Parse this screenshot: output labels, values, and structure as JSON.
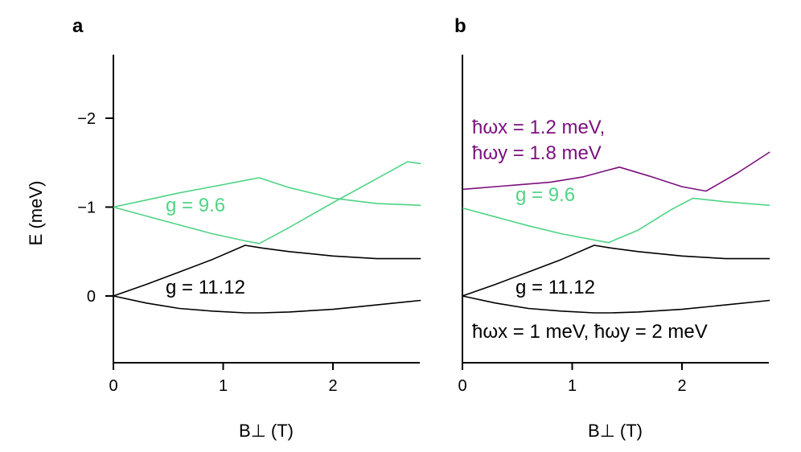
{
  "colors": {
    "black": "#000000",
    "green": "#4fd484",
    "purple": "#7b0f7d"
  },
  "ylabel": "E (meV)",
  "chart_data": [
    {
      "panel": "a",
      "type": "line",
      "xlabel": "B⊥ (T)",
      "xlim": [
        0,
        2.8
      ],
      "ylim": [
        0.75,
        -2.7
      ],
      "xticks": [
        "0",
        "1",
        "2"
      ],
      "yticks": [
        "−2",
        "−1",
        "0"
      ],
      "series": [
        {
          "name": "g=11.12 lower",
          "color": "black",
          "x": [
            0,
            0.3,
            0.6,
            0.9,
            1.2,
            1.35,
            1.6,
            2.0,
            2.4,
            2.8
          ],
          "y": [
            0,
            0.08,
            0.14,
            0.17,
            0.19,
            0.19,
            0.18,
            0.15,
            0.1,
            0.05
          ]
        },
        {
          "name": "g=11.12 upper",
          "color": "black",
          "x": [
            0,
            0.3,
            0.6,
            0.9,
            1.2,
            1.35,
            1.6,
            2.0,
            2.4,
            2.8
          ],
          "y": [
            0,
            -0.13,
            -0.27,
            -0.41,
            -0.57,
            -0.54,
            -0.5,
            -0.45,
            -0.42,
            -0.42
          ]
        },
        {
          "name": "g=9.6 lower",
          "color": "green",
          "x": [
            0,
            0.3,
            0.6,
            0.9,
            1.2,
            1.33,
            1.6,
            2.0,
            2.4,
            2.68,
            2.8
          ],
          "y": [
            -1,
            -0.9,
            -0.8,
            -0.7,
            -0.62,
            -0.59,
            -0.77,
            -1.05,
            -1.32,
            -1.51,
            -1.49
          ]
        },
        {
          "name": "g=9.6 upper",
          "color": "green",
          "x": [
            0,
            0.3,
            0.6,
            0.9,
            1.2,
            1.33,
            1.6,
            2.0,
            2.4,
            2.8
          ],
          "y": [
            -1,
            -1.08,
            -1.16,
            -1.23,
            -1.3,
            -1.33,
            -1.22,
            -1.1,
            -1.04,
            -1.02
          ]
        }
      ],
      "annotations": [
        {
          "text": "g = 9.6",
          "color": "green"
        },
        {
          "text": "g = 11.12",
          "color": "black"
        }
      ]
    },
    {
      "panel": "b",
      "type": "line",
      "xlabel": "B⊥ (T)",
      "xlim": [
        0,
        2.8
      ],
      "ylim": [
        0.75,
        -2.7
      ],
      "xticks": [
        "0",
        "1",
        "2"
      ],
      "yticks": [],
      "series": [
        {
          "name": "g=11.12 lower",
          "color": "black",
          "x": [
            0,
            0.3,
            0.6,
            0.9,
            1.2,
            1.35,
            1.6,
            2.0,
            2.4,
            2.8
          ],
          "y": [
            0,
            0.08,
            0.14,
            0.17,
            0.19,
            0.19,
            0.18,
            0.15,
            0.1,
            0.05
          ]
        },
        {
          "name": "g=11.12 upper",
          "color": "black",
          "x": [
            0,
            0.3,
            0.6,
            0.9,
            1.2,
            1.35,
            1.6,
            2.0,
            2.4,
            2.8
          ],
          "y": [
            0,
            -0.13,
            -0.27,
            -0.41,
            -0.57,
            -0.54,
            -0.5,
            -0.45,
            -0.42,
            -0.42
          ]
        },
        {
          "name": "g=9.6",
          "color": "green",
          "x": [
            0,
            0.3,
            0.6,
            0.9,
            1.33,
            1.6,
            1.9,
            2.1,
            2.4,
            2.8
          ],
          "y": [
            -0.99,
            -0.89,
            -0.79,
            -0.7,
            -0.6,
            -0.74,
            -0.97,
            -1.1,
            -1.06,
            -1.02
          ]
        },
        {
          "name": "purple",
          "color": "purple",
          "x": [
            0,
            0.4,
            0.8,
            1.1,
            1.43,
            1.7,
            2.0,
            2.22,
            2.5,
            2.8
          ],
          "y": [
            -1.2,
            -1.24,
            -1.28,
            -1.34,
            -1.45,
            -1.35,
            -1.23,
            -1.18,
            -1.38,
            -1.62
          ]
        }
      ],
      "annotations": [
        {
          "text": "ħωx = 1.2 meV,",
          "color": "purple"
        },
        {
          "text": "ħωy = 1.8 meV",
          "color": "purple"
        },
        {
          "text": "g = 9.6",
          "color": "green"
        },
        {
          "text": "g = 11.12",
          "color": "black"
        },
        {
          "text": "ħωx = 1 meV, ħωy = 2 meV",
          "color": "black"
        }
      ]
    }
  ]
}
